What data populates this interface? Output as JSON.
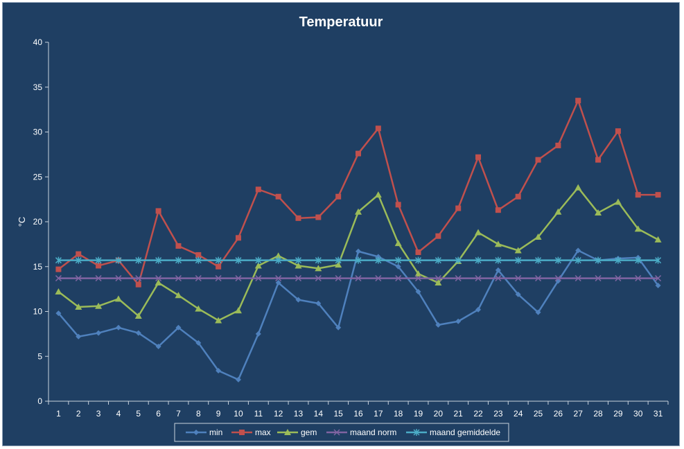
{
  "chart_data": {
    "type": "line",
    "title": "Temperatuur",
    "xlabel": "",
    "ylabel": "°C",
    "ylim": [
      0,
      40
    ],
    "yticks": [
      0,
      5,
      10,
      15,
      20,
      25,
      30,
      35,
      40
    ],
    "categories": [
      "1",
      "2",
      "3",
      "4",
      "5",
      "6",
      "7",
      "8",
      "9",
      "10",
      "11",
      "12",
      "13",
      "14",
      "15",
      "16",
      "17",
      "18",
      "19",
      "20",
      "21",
      "22",
      "23",
      "24",
      "25",
      "26",
      "27",
      "28",
      "29",
      "30",
      "31"
    ],
    "grid": false,
    "legend_position": "bottom",
    "series": [
      {
        "name": "min",
        "color": "#4f81bd",
        "marker": "diamond",
        "values": [
          9.8,
          7.2,
          7.6,
          8.2,
          7.6,
          6.1,
          8.2,
          6.5,
          3.4,
          2.4,
          7.5,
          13.2,
          11.3,
          10.9,
          8.2,
          16.7,
          16.1,
          15.0,
          12.2,
          8.5,
          8.9,
          10.2,
          14.6,
          11.9,
          9.9,
          13.4,
          16.8,
          15.7,
          15.9,
          16.0,
          12.9
        ]
      },
      {
        "name": "max",
        "color": "#c0504d",
        "marker": "square",
        "values": [
          14.7,
          16.4,
          15.1,
          15.7,
          13.0,
          21.2,
          17.3,
          16.3,
          15.0,
          18.2,
          23.6,
          22.8,
          20.4,
          20.5,
          22.8,
          27.6,
          30.4,
          21.9,
          16.6,
          18.4,
          21.5,
          27.2,
          21.3,
          22.8,
          26.9,
          28.5,
          33.5,
          26.9,
          30.1,
          23.0,
          23.0
        ]
      },
      {
        "name": "gem",
        "color": "#9bbb59",
        "marker": "triangle",
        "values": [
          12.2,
          10.5,
          10.6,
          11.4,
          9.5,
          13.2,
          11.8,
          10.3,
          9.0,
          10.1,
          15.1,
          16.2,
          15.1,
          14.8,
          15.2,
          21.1,
          23.0,
          17.6,
          14.2,
          13.2,
          15.6,
          18.8,
          17.5,
          16.8,
          18.3,
          21.1,
          23.8,
          21.0,
          22.2,
          19.2,
          18.0
        ]
      },
      {
        "name": "maand norm",
        "color": "#8064a2",
        "marker": "x",
        "values": [
          13.7,
          13.7,
          13.7,
          13.7,
          13.7,
          13.7,
          13.7,
          13.7,
          13.7,
          13.7,
          13.7,
          13.7,
          13.7,
          13.7,
          13.7,
          13.7,
          13.7,
          13.7,
          13.7,
          13.7,
          13.7,
          13.7,
          13.7,
          13.7,
          13.7,
          13.7,
          13.7,
          13.7,
          13.7,
          13.7,
          13.7
        ]
      },
      {
        "name": "maand gemiddelde",
        "color": "#4bacc6",
        "marker": "star",
        "values": [
          15.7,
          15.7,
          15.7,
          15.7,
          15.7,
          15.7,
          15.7,
          15.7,
          15.7,
          15.7,
          15.7,
          15.7,
          15.7,
          15.7,
          15.7,
          15.7,
          15.7,
          15.7,
          15.7,
          15.7,
          15.7,
          15.7,
          15.7,
          15.7,
          15.7,
          15.7,
          15.7,
          15.7,
          15.7,
          15.7,
          15.7
        ]
      }
    ]
  }
}
